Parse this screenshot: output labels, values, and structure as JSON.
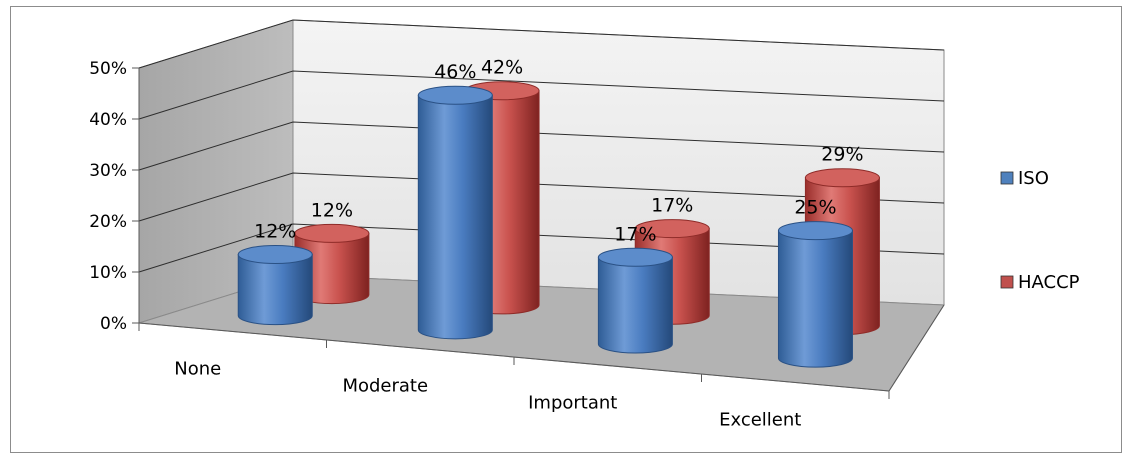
{
  "chart_data": {
    "type": "bar",
    "style": "3d-cylinder",
    "title": "",
    "xlabel": "",
    "ylabel": "",
    "categories": [
      "None",
      "Moderate",
      "Important",
      "Excellent"
    ],
    "series": [
      {
        "name": "ISO",
        "values": [
          12,
          46,
          17,
          25
        ],
        "labels": [
          "12%",
          "46%",
          "17%",
          "25%"
        ],
        "color": "#4f81bd"
      },
      {
        "name": "HACCP",
        "values": [
          12,
          42,
          17,
          29
        ],
        "labels": [
          "12%",
          "42%",
          "17%",
          "29%"
        ],
        "color": "#c0504d"
      }
    ],
    "ylim": [
      0,
      50
    ],
    "yticks": [
      0,
      10,
      20,
      30,
      40,
      50
    ],
    "ytick_labels": [
      "0%",
      "10%",
      "20%",
      "30%",
      "40%",
      "50%"
    ],
    "grid": true,
    "legend": "right"
  }
}
